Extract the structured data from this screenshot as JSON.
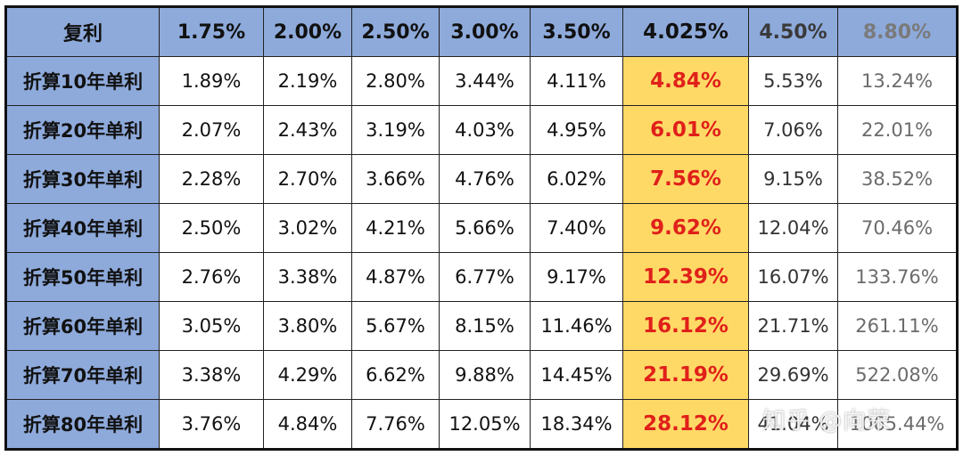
{
  "table": {
    "corner_label": "复利",
    "columns": [
      "1.75%",
      "2.00%",
      "2.50%",
      "3.00%",
      "3.50%",
      "4.025%",
      "4.50%",
      "8.80%"
    ],
    "highlight_column_index": 5,
    "colors": {
      "header_bg": "#8eaadb",
      "highlight_bg": "#ffd966",
      "highlight_text": "#e0201a"
    },
    "rows": [
      {
        "label": "折算10年单利",
        "values": [
          "1.89%",
          "2.19%",
          "2.80%",
          "3.44%",
          "4.11%",
          "4.84%",
          "5.53%",
          "13.24%"
        ]
      },
      {
        "label": "折算20年单利",
        "values": [
          "2.07%",
          "2.43%",
          "3.19%",
          "4.03%",
          "4.95%",
          "6.01%",
          "7.06%",
          "22.01%"
        ]
      },
      {
        "label": "折算30年单利",
        "values": [
          "2.28%",
          "2.70%",
          "3.66%",
          "4.76%",
          "6.02%",
          "7.56%",
          "9.15%",
          "38.52%"
        ]
      },
      {
        "label": "折算40年单利",
        "values": [
          "2.50%",
          "3.02%",
          "4.21%",
          "5.66%",
          "7.40%",
          "9.62%",
          "12.04%",
          "70.46%"
        ]
      },
      {
        "label": "折算50年单利",
        "values": [
          "2.76%",
          "3.38%",
          "4.87%",
          "6.77%",
          "9.17%",
          "12.39%",
          "16.07%",
          "133.76%"
        ]
      },
      {
        "label": "折算60年单利",
        "values": [
          "3.05%",
          "3.80%",
          "5.67%",
          "8.15%",
          "11.46%",
          "16.12%",
          "21.71%",
          "261.11%"
        ]
      },
      {
        "label": "折算70年单利",
        "values": [
          "3.38%",
          "4.29%",
          "6.62%",
          "9.88%",
          "14.45%",
          "21.19%",
          "29.69%",
          "522.08%"
        ]
      },
      {
        "label": "折算80年单利",
        "values": [
          "3.76%",
          "4.84%",
          "7.76%",
          "12.05%",
          "18.34%",
          "28.12%",
          "41.04%",
          "1065.44%"
        ]
      }
    ]
  },
  "watermark": "知乎 @向荣"
}
